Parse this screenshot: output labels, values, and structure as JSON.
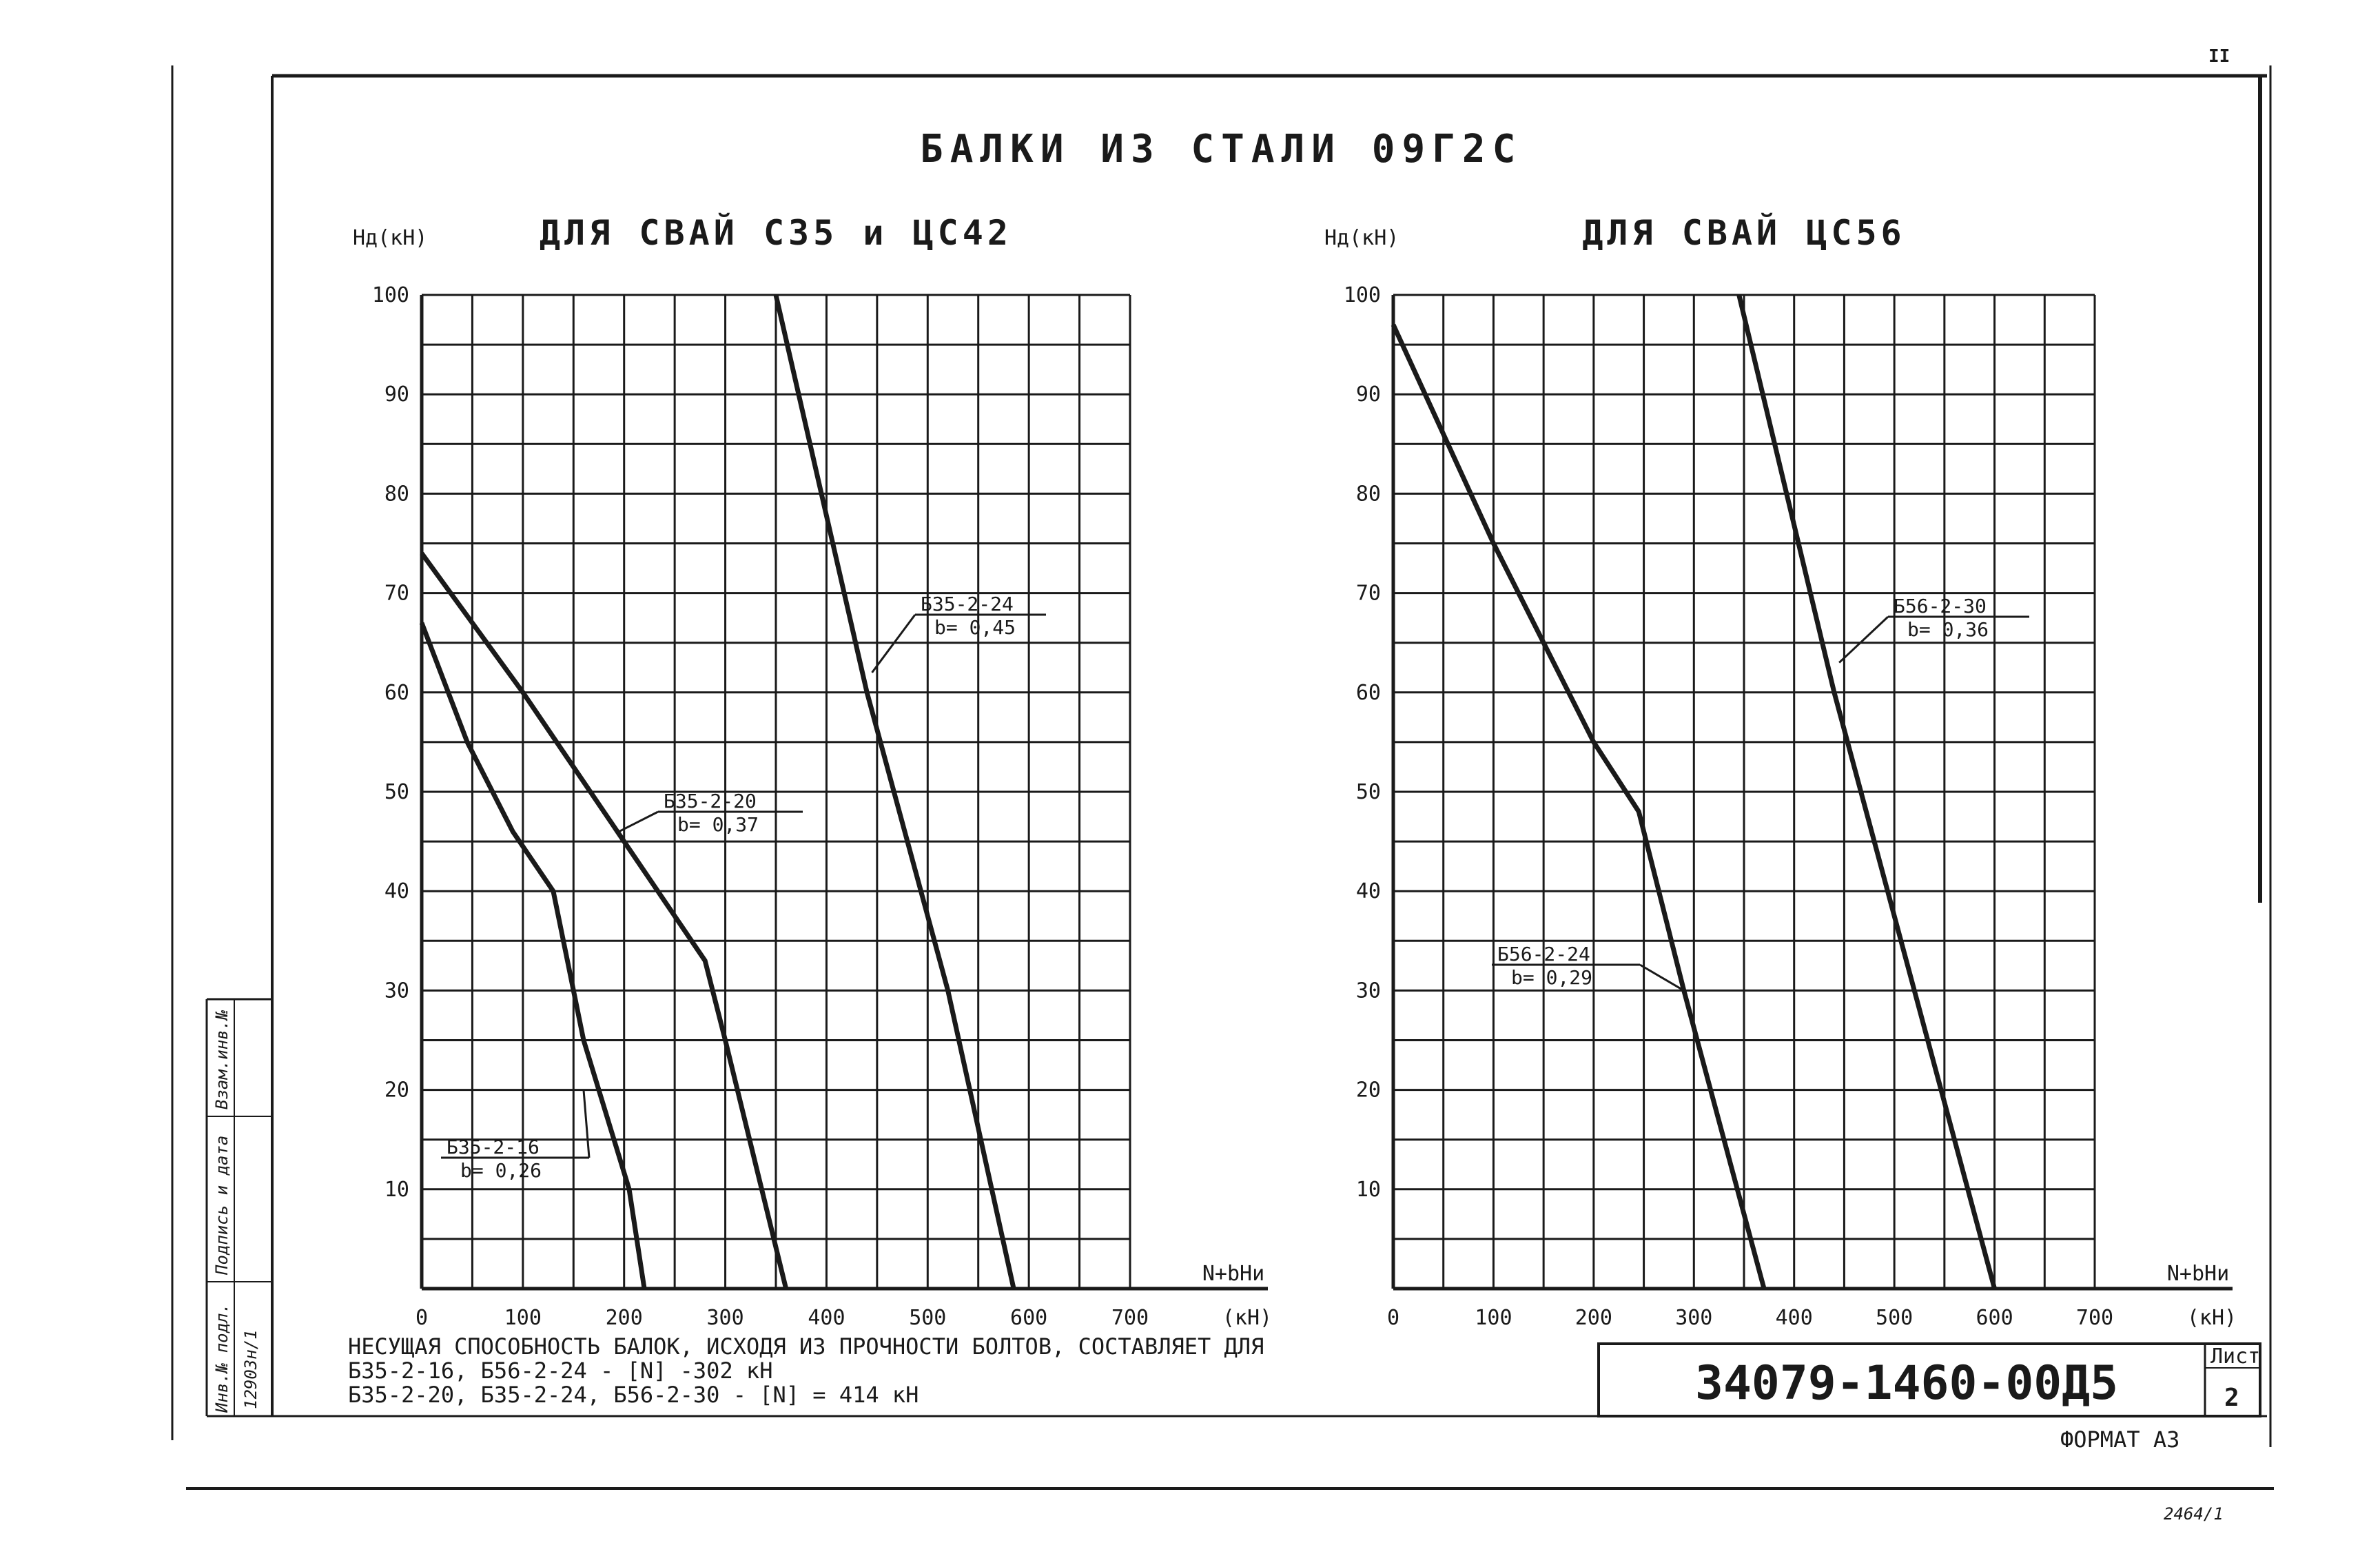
{
  "header": {
    "main_title": "БАЛКИ ИЗ СТАЛИ 09Г2С",
    "corner_mark": "II"
  },
  "chart_data": [
    {
      "type": "line",
      "title": "ДЛЯ СВАЙ С35 и ЦС42",
      "ylabel": "Нд(кН)",
      "xlabel": "N+bНи",
      "x_unit": "(кН)",
      "xlim": [
        0,
        700
      ],
      "ylim": [
        0,
        100
      ],
      "x_ticks": [
        0,
        100,
        200,
        300,
        400,
        500,
        600,
        700
      ],
      "y_ticks": [
        10,
        20,
        30,
        40,
        50,
        60,
        70,
        80,
        90,
        100
      ],
      "grid": true,
      "series": [
        {
          "name": "Б35-2-16",
          "b": "b= 0,26",
          "x": [
            0,
            45,
            90,
            130,
            160,
            205,
            220
          ],
          "y": [
            67,
            55,
            46,
            40,
            25,
            10,
            0
          ]
        },
        {
          "name": "Б35-2-20",
          "b": "b= 0,37",
          "x": [
            0,
            100,
            200,
            280,
            300,
            360
          ],
          "y": [
            74,
            60,
            45,
            33,
            25,
            0
          ]
        },
        {
          "name": "Б35-2-24",
          "b": "b= 0,45",
          "x": [
            350,
            440,
            520,
            585
          ],
          "y": [
            100,
            60,
            30,
            0
          ]
        }
      ]
    },
    {
      "type": "line",
      "title": "ДЛЯ СВАЙ ЦС56",
      "ylabel": "Нд(кН)",
      "xlabel": "N+bНи",
      "x_unit": "(кН)",
      "xlim": [
        0,
        700
      ],
      "ylim": [
        0,
        100
      ],
      "x_ticks": [
        0,
        100,
        200,
        300,
        400,
        500,
        600,
        700
      ],
      "y_ticks": [
        10,
        20,
        30,
        40,
        50,
        60,
        70,
        80,
        90,
        100
      ],
      "grid": true,
      "series": [
        {
          "name": "Б56-2-24",
          "b": "b= 0,29",
          "x": [
            0,
            100,
            200,
            245,
            290,
            370
          ],
          "y": [
            97,
            75,
            55,
            48,
            30,
            0
          ]
        },
        {
          "name": "Б56-2-30",
          "b": "b= 0,36",
          "x": [
            345,
            440,
            520,
            600
          ],
          "y": [
            100,
            60,
            30,
            0
          ]
        }
      ]
    }
  ],
  "notes": [
    "НЕСУЩАЯ СПОСОБНОСТЬ БАЛОК, ИСХОДЯ ИЗ ПРОЧНОСТИ БОЛТОВ, СОСТАВЛЯЕТ ДЛЯ",
    "Б35-2-16, Б56-2-24 - [N] -302 кН",
    "Б35-2-20, Б35-2-24, Б56-2-30 - [N] = 414 кН"
  ],
  "stamp": {
    "code": "34079-1460-00Д5",
    "sheet_label": "Лист",
    "sheet_number": "2",
    "format": "ФОРМАТ А3",
    "archive_number": "2464/1"
  },
  "side_stamp": {
    "inv_orig": "Инв.№ подл.",
    "sign_date": "Подпись и дата",
    "inv_dup": "Взам.инв.№",
    "inv_value": "12903н/1"
  }
}
